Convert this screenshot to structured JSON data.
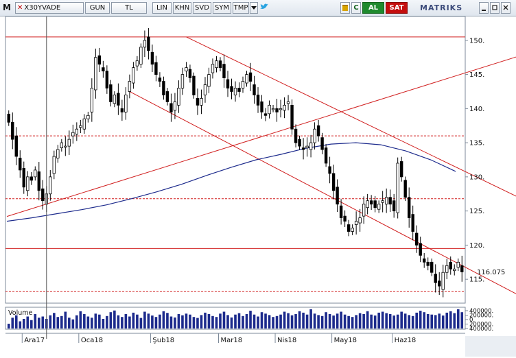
{
  "toolbar": {
    "logo": "M",
    "ticker_close": "✕",
    "ticker": "X30YVADE",
    "buttons": [
      "GUN",
      "TL",
      "LIN",
      "KHN",
      "SVD",
      "SYM",
      "TMP"
    ],
    "dropdown_icon": "triangle-down-icon",
    "bird_icon": "twitter-bird-icon",
    "refresh_symbol": "C",
    "buy_label": "AL",
    "sell_label": "SAT",
    "brand": "MATRIKS",
    "window_controls": [
      "minimize-icon",
      "restore-icon",
      "close-icon"
    ],
    "colors": {
      "buy": "#1f8a2e",
      "sell": "#c40e0e"
    }
  },
  "chart_data": {
    "type": "candlestick",
    "price_axis": {
      "ticks": [
        150,
        145,
        140,
        135,
        130,
        125,
        120,
        115
      ],
      "range": [
        111.5,
        153.5
      ],
      "labels": [
        "150.",
        "145.",
        "140.",
        "135.",
        "130.",
        "125.",
        "120.",
        "115."
      ]
    },
    "last_price": "116.075",
    "x_labels": [
      "Ara17",
      "Oca18",
      "Şub18",
      "Mar18",
      "Nis18",
      "May18",
      "Haz18"
    ],
    "volume_label": "Volume",
    "volume_axis": {
      "labels": [
        "400000.",
        "200000.",
        "0.",
        "200000.",
        "400000."
      ]
    },
    "moving_average_color": "#1c2a8c",
    "trendline_color": "#d01c1c",
    "horizontal_levels": [
      {
        "price": 150.5,
        "style": "solid"
      },
      {
        "price": 136,
        "style": "dashed"
      },
      {
        "price": 126.8,
        "style": "dashed"
      },
      {
        "price": 119.5,
        "style": "solid"
      },
      {
        "price": 113.2,
        "style": "dashed"
      }
    ],
    "close_series": [
      138,
      135.5,
      133,
      131,
      128.5,
      130,
      129.5,
      131,
      128,
      126.5,
      127.5,
      130,
      133,
      134,
      135,
      134.5,
      135.5,
      136.5,
      137,
      137.5,
      138.5,
      139,
      143,
      147.5,
      146.5,
      145.5,
      143,
      141,
      142,
      140.5,
      139.5,
      142,
      144,
      146,
      147,
      149,
      150,
      148.5,
      146.5,
      145,
      144,
      142,
      141,
      139.5,
      141,
      143,
      145,
      146,
      144.5,
      142,
      140.5,
      141.5,
      143.5,
      145,
      146.5,
      147,
      146,
      144.5,
      143,
      142.5,
      143,
      142.5,
      144,
      145,
      144,
      142,
      140.5,
      139.5,
      139,
      140.5,
      140,
      139.5,
      140,
      140.5,
      141,
      137,
      135,
      134.5,
      134,
      134.5,
      135,
      137,
      136,
      134,
      132,
      130.5,
      128,
      126,
      124,
      123.5,
      122,
      122.5,
      123.5,
      124,
      126,
      126.5,
      126,
      125.5,
      126,
      126.5,
      127,
      126,
      125,
      132,
      130,
      127,
      124,
      122,
      120,
      118.5,
      117.5,
      117,
      116,
      114.5,
      114,
      116,
      117,
      116.5,
      116.5,
      117.5,
      116.075
    ],
    "moving_average": [
      123.5,
      124,
      124.6,
      125.2,
      125.9,
      126.8,
      127.8,
      128.9,
      130.2,
      131.4,
      132.5,
      133.3,
      134.2,
      134.8,
      135,
      134.7,
      133.8,
      132.5,
      130.8
    ],
    "volume_series": [
      20,
      45,
      55,
      30,
      40,
      50,
      35,
      60,
      45,
      50,
      40,
      55,
      65,
      48,
      52,
      70,
      45,
      38,
      55,
      72,
      60,
      50,
      45,
      62,
      58,
      40,
      52,
      68,
      75,
      55,
      48,
      60,
      50,
      66,
      58,
      44,
      70,
      62,
      54,
      48,
      58,
      72,
      65,
      50,
      46,
      60,
      55,
      62,
      58,
      48,
      44,
      56,
      66,
      60,
      52,
      48,
      62,
      70,
      56,
      46,
      58,
      64,
      52,
      60,
      74,
      58,
      50,
      68,
      62,
      56,
      48,
      52,
      58,
      70,
      64,
      55,
      60,
      72,
      66,
      58,
      80,
      62,
      56,
      52,
      68,
      60,
      54,
      62,
      70,
      58,
      52,
      48,
      56,
      64,
      60,
      72,
      58,
      54,
      66,
      70,
      64,
      60,
      54,
      58,
      70,
      62,
      56,
      52,
      66,
      74,
      68,
      60,
      58,
      56,
      62,
      54,
      66,
      72,
      64,
      80,
      68
    ],
    "trendlines": [
      {
        "from": [
          -0.5,
          124.2
        ],
        "to": [
          138,
          148.2
        ]
      },
      {
        "from": [
          47,
          150.5
        ],
        "to": [
          138,
          126.2
        ]
      },
      {
        "from": [
          32,
          142.5
        ],
        "to": [
          138,
          111.8
        ]
      }
    ],
    "vertical_cursor_bar": 10
  }
}
